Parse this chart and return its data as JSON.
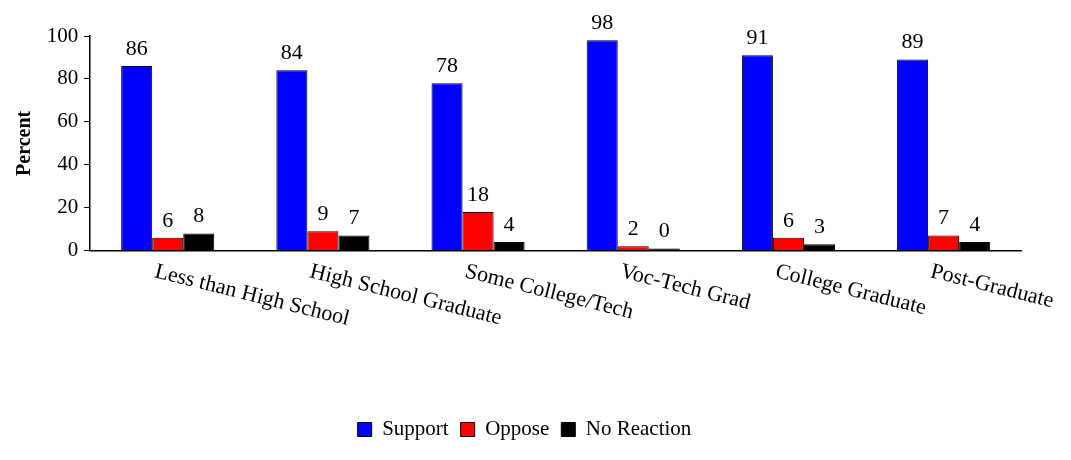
{
  "chart_data": {
    "type": "bar",
    "ylabel": "Percent",
    "categories": [
      "Less than High School",
      "High School Graduate",
      "Some College/Tech",
      "Voc-Tech Grad",
      "College Graduate",
      "Post-Graduate"
    ],
    "series": [
      {
        "name": "Support",
        "color": "#0000ff",
        "values": [
          86,
          84,
          78,
          98,
          91,
          89
        ]
      },
      {
        "name": "Oppose",
        "color": "#ff0000",
        "values": [
          6,
          9,
          18,
          2,
          6,
          7
        ]
      },
      {
        "name": "No Reaction",
        "color": "#000000",
        "values": [
          8,
          7,
          4,
          0,
          3,
          4
        ]
      }
    ],
    "ylim": [
      0,
      100
    ],
    "yticks": [
      0,
      20,
      40,
      60,
      80,
      100
    ],
    "grid": false,
    "legend": "bottom",
    "data_labels": true
  }
}
